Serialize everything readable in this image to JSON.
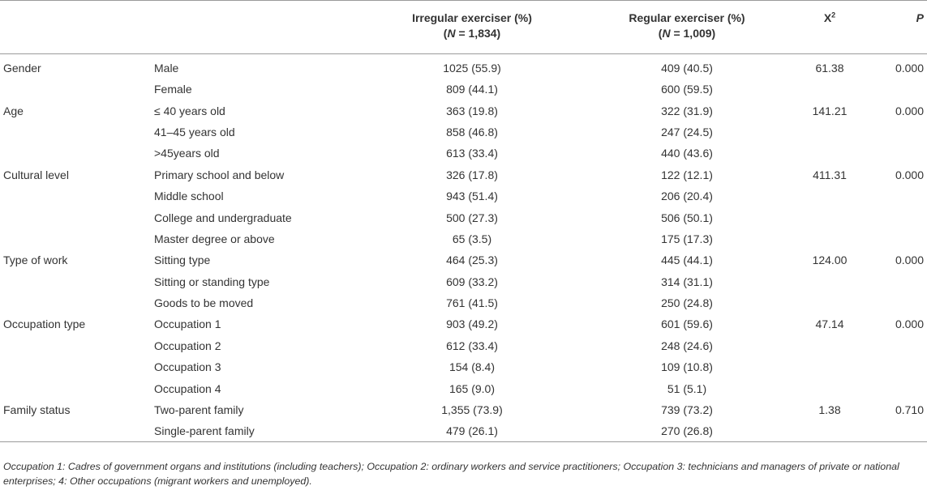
{
  "header": {
    "irregular_label": "Irregular exerciser (%)",
    "irregular_n_prefix": "(",
    "irregular_n_var": "N",
    "irregular_n_value": " = 1,834)",
    "regular_label": "Regular exerciser (%)",
    "regular_n_prefix": "(",
    "regular_n_var": "N",
    "regular_n_value": " = 1,009)",
    "chi_label": "X",
    "chi_sup": "2",
    "p_label": "P"
  },
  "rows": [
    {
      "variable": "Gender",
      "category": "Male",
      "irregular": "1025 (55.9)",
      "regular": "409 (40.5)",
      "chi": "61.38",
      "p": "0.000"
    },
    {
      "variable": "",
      "category": "Female",
      "irregular": "809 (44.1)",
      "regular": "600 (59.5)",
      "chi": "",
      "p": ""
    },
    {
      "variable": "Age",
      "category": "≤ 40 years old",
      "irregular": "363 (19.8)",
      "regular": "322 (31.9)",
      "chi": "141.21",
      "p": "0.000"
    },
    {
      "variable": "",
      "category": "41–45 years old",
      "irregular": "858 (46.8)",
      "regular": "247 (24.5)",
      "chi": "",
      "p": ""
    },
    {
      "variable": "",
      "category": ">45years old",
      "irregular": "613 (33.4)",
      "regular": "440 (43.6)",
      "chi": "",
      "p": ""
    },
    {
      "variable": "Cultural level",
      "category": "Primary school and below",
      "irregular": "326 (17.8)",
      "regular": "122 (12.1)",
      "chi": "411.31",
      "p": "0.000"
    },
    {
      "variable": "",
      "category": "Middle school",
      "irregular": "943 (51.4)",
      "regular": "206 (20.4)",
      "chi": "",
      "p": ""
    },
    {
      "variable": "",
      "category": "College and undergraduate",
      "irregular": "500 (27.3)",
      "regular": "506 (50.1)",
      "chi": "",
      "p": ""
    },
    {
      "variable": "",
      "category": "Master degree or above",
      "irregular": "65 (3.5)",
      "regular": "175 (17.3)",
      "chi": "",
      "p": ""
    },
    {
      "variable": "Type of work",
      "category": "Sitting type",
      "irregular": "464 (25.3)",
      "regular": "445 (44.1)",
      "chi": "124.00",
      "p": "0.000"
    },
    {
      "variable": "",
      "category": "Sitting or standing type",
      "irregular": "609 (33.2)",
      "regular": "314 (31.1)",
      "chi": "",
      "p": ""
    },
    {
      "variable": "",
      "category": "Goods to be moved",
      "irregular": "761 (41.5)",
      "regular": "250 (24.8)",
      "chi": "",
      "p": ""
    },
    {
      "variable": "Occupation type",
      "category": "Occupation 1",
      "irregular": "903 (49.2)",
      "regular": "601 (59.6)",
      "chi": "47.14",
      "p": "0.000"
    },
    {
      "variable": "",
      "category": "Occupation 2",
      "irregular": "612 (33.4)",
      "regular": "248 (24.6)",
      "chi": "",
      "p": ""
    },
    {
      "variable": "",
      "category": "Occupation 3",
      "irregular": "154 (8.4)",
      "regular": "109 (10.8)",
      "chi": "",
      "p": ""
    },
    {
      "variable": "",
      "category": "Occupation 4",
      "irregular": "165 (9.0)",
      "regular": "51 (5.1)",
      "chi": "",
      "p": ""
    },
    {
      "variable": "Family status",
      "category": "Two-parent family",
      "irregular": "1,355 (73.9)",
      "regular": "739 (73.2)",
      "chi": "1.38",
      "p": "0.710"
    },
    {
      "variable": "",
      "category": "Single-parent family",
      "irregular": "479 (26.1)",
      "regular": "270 (26.8)",
      "chi": "",
      "p": ""
    }
  ],
  "footnote": "Occupation 1: Cadres of government organs and institutions (including teachers); Occupation 2: ordinary workers and service practitioners; Occupation 3: technicians and managers of private or national enterprises; 4: Other occupations (migrant workers and unemployed)."
}
